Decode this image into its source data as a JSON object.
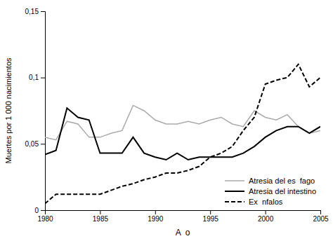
{
  "chart_data": {
    "type": "line",
    "x": [
      1980,
      1981,
      1982,
      1983,
      1984,
      1985,
      1986,
      1987,
      1988,
      1989,
      1990,
      1991,
      1992,
      1993,
      1994,
      1995,
      1996,
      1997,
      1998,
      1999,
      2000,
      2001,
      2002,
      2003,
      2004,
      2005
    ],
    "series": [
      {
        "name": "Atresia del es  fago",
        "color": "#aaaaaa",
        "line_style": "solid",
        "values": [
          0.055,
          0.053,
          0.067,
          0.065,
          0.055,
          0.055,
          0.058,
          0.06,
          0.079,
          0.075,
          0.068,
          0.065,
          0.065,
          0.067,
          0.065,
          0.068,
          0.07,
          0.065,
          0.063,
          0.075,
          0.07,
          0.068,
          0.072,
          0.063,
          0.058,
          0.06
        ]
      },
      {
        "name": "Atresia del intestino",
        "color": "#000000",
        "line_style": "solid",
        "values": [
          0.042,
          0.045,
          0.077,
          0.07,
          0.068,
          0.043,
          0.043,
          0.043,
          0.055,
          0.043,
          0.04,
          0.038,
          0.043,
          0.038,
          0.04,
          0.04,
          0.04,
          0.04,
          0.043,
          0.048,
          0.055,
          0.06,
          0.063,
          0.063,
          0.058,
          0.063
        ]
      },
      {
        "name": "Ex  nfalos",
        "color": "#000000",
        "line_style": "dashed",
        "values": [
          0.005,
          0.012,
          0.012,
          0.012,
          0.012,
          0.012,
          0.015,
          0.018,
          0.02,
          0.023,
          0.025,
          0.028,
          0.028,
          0.03,
          0.033,
          0.04,
          0.043,
          0.048,
          0.06,
          0.07,
          0.095,
          0.098,
          0.1,
          0.11,
          0.093,
          0.1
        ]
      }
    ],
    "xlabel": "A  o",
    "ylabel": "Muertes por 1 000 nacimientos",
    "xlim": [
      1980,
      2005
    ],
    "ylim": [
      0,
      0.15
    ],
    "xticks": [
      1980,
      1985,
      1990,
      1995,
      2000,
      2005
    ],
    "yticks": [
      0,
      {
        "value": 0.05,
        "label": "0,05"
      },
      {
        "value": 0.1,
        "label": "0,1"
      },
      {
        "value": 0.15,
        "label": "0,15"
      }
    ],
    "grid": false,
    "legend": "lower right"
  }
}
